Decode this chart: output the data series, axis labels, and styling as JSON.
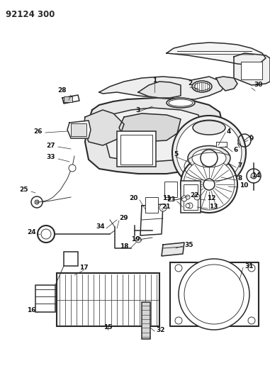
{
  "title": "92124 300",
  "bg_color": "#ffffff",
  "line_color": "#2a2a2a",
  "label_color": "#111111",
  "fig_width": 3.81,
  "fig_height": 5.33,
  "dpi": 100,
  "lw_main": 1.1,
  "lw_thin": 0.65,
  "lw_heavy": 1.5
}
